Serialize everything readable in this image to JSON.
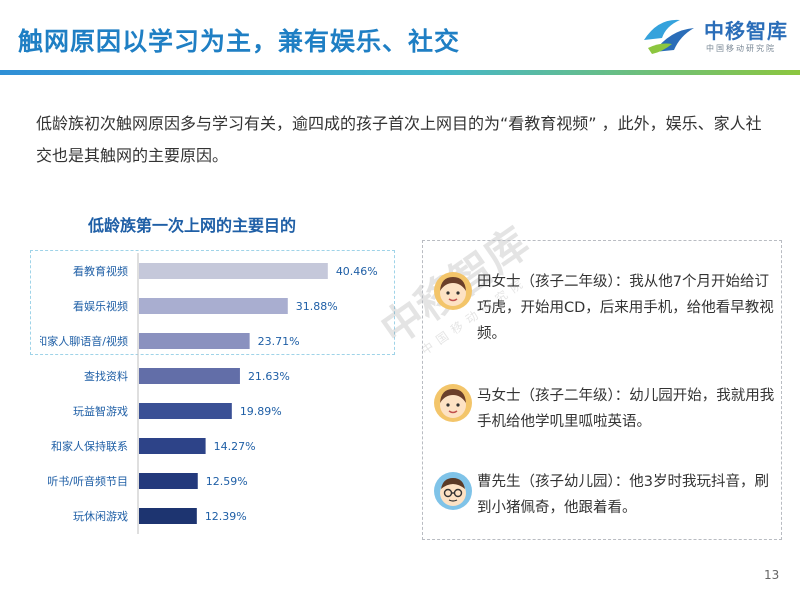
{
  "header": {
    "title": "触网原因以学习为主，兼有娱乐、社交"
  },
  "logo": {
    "name": "中移智库",
    "subtitle": "中国移动研究院"
  },
  "intro": {
    "text": "低龄族初次触网原因多与学习有关，逾四成的孩子首次上网目的为“看教育视频” ，此外，娱乐、家人社交也是其触网的主要原因。"
  },
  "chart_data": {
    "type": "bar",
    "orientation": "horizontal",
    "title": "低龄族第一次上网的主要目的",
    "categories": [
      "看教育视频",
      "看娱乐视频",
      "和家人聊语音/视频",
      "查找资料",
      "玩益智游戏",
      "和家人保持联系",
      "听书/听音频节目",
      "玩休闲游戏"
    ],
    "values": [
      40.46,
      31.88,
      23.71,
      21.63,
      19.89,
      14.27,
      12.59,
      12.39
    ],
    "value_labels": [
      "40.46%",
      "31.88%",
      "23.71%",
      "21.63%",
      "19.89%",
      "14.27%",
      "12.59%",
      "12.39%"
    ],
    "bar_colors": [
      "#c5c8da",
      "#a9aed0",
      "#8a91bf",
      "#626ea8",
      "#3a5095",
      "#2d4388",
      "#23397c",
      "#1d3470"
    ],
    "xlim": [
      0,
      45
    ],
    "grid": false,
    "highlighted_categories": [
      "看教育视频",
      "看娱乐视频",
      "和家人聊语音/视频"
    ]
  },
  "quotes": [
    {
      "icon": "girl-avatar-icon",
      "text": "田女士（孩子二年级）：我从他7个月开始给订巧虎，开始用CD，后来用手机，给他看早教视频。"
    },
    {
      "icon": "girl-avatar-icon",
      "text": "马女士（孩子二年级）：幼儿园开始，我就用我手机给他学叽里呱啦英语。"
    },
    {
      "icon": "man-glasses-avatar-icon",
      "text": "曹先生（孩子幼儿园）：他3岁时我玩抖音，刷到小猪佩奇，他跟着看。"
    }
  ],
  "watermark": {
    "name": "中移智库",
    "subtitle": "中国移动研究院"
  },
  "footer": {
    "page_number": "13"
  }
}
